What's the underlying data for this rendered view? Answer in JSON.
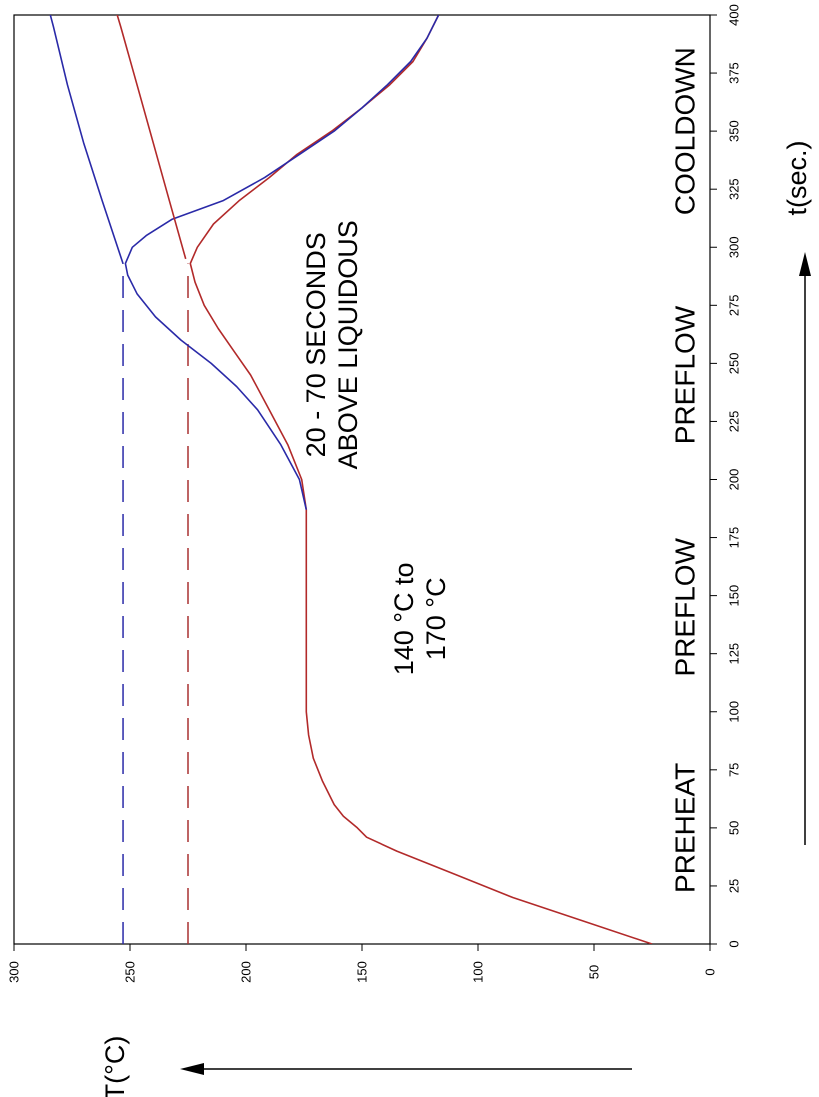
{
  "chart_data": {
    "type": "line",
    "orientation": "rotated-90-ccw",
    "xlabel": "t(sec.)",
    "ylabel": "T(°C)",
    "xlim": [
      0,
      400
    ],
    "ylim": [
      0,
      300
    ],
    "x_ticks": [
      "0",
      "25",
      "50",
      "75",
      "100",
      "125",
      "150",
      "175",
      "200",
      "225",
      "250",
      "275",
      "300",
      "325",
      "350",
      "375",
      "400"
    ],
    "y_ticks": [
      "0",
      "50",
      "100",
      "150",
      "200",
      "250",
      "300"
    ],
    "grid": false,
    "phase_labels": [
      {
        "text": "PREHEAT",
        "from": 0,
        "to": 100
      },
      {
        "text": "PREFLOW",
        "from": 100,
        "to": 190
      },
      {
        "text": "PREFLOW",
        "from": 190,
        "to": 300
      },
      {
        "text": "COOLDOWN",
        "from": 300,
        "to": 400
      }
    ],
    "annotations": [
      {
        "lines": [
          "140 °C to",
          "170 °C"
        ],
        "x": 140,
        "y": 132
      },
      {
        "lines": [
          "20 - 70 SECONDS",
          "ABOVE LIQUIDOUS"
        ],
        "x": 258,
        "y": 170
      }
    ],
    "reference_lines": [
      {
        "series_color": "#2a2aa8",
        "value": 253,
        "dashed": true
      },
      {
        "series_color": "#a83030",
        "value": 225,
        "dashed": true
      }
    ],
    "series": [
      {
        "color": "#b22a2a",
        "points": [
          [
            0,
            25
          ],
          [
            10,
            55
          ],
          [
            20,
            85
          ],
          [
            30,
            110
          ],
          [
            40,
            135
          ],
          [
            46,
            148
          ],
          [
            50,
            152
          ],
          [
            55,
            158
          ],
          [
            60,
            162
          ],
          [
            70,
            167
          ],
          [
            80,
            171
          ],
          [
            90,
            173
          ],
          [
            100,
            174
          ],
          [
            150,
            174
          ],
          [
            187,
            174
          ],
          [
            200,
            176
          ],
          [
            215,
            182
          ],
          [
            230,
            190
          ],
          [
            245,
            198
          ],
          [
            255,
            205
          ],
          [
            265,
            212
          ],
          [
            275,
            218
          ],
          [
            285,
            222
          ],
          [
            293,
            224
          ],
          [
            300,
            221
          ],
          [
            310,
            214
          ],
          [
            320,
            203
          ],
          [
            330,
            190
          ],
          [
            340,
            178
          ],
          [
            350,
            163
          ],
          [
            360,
            150
          ],
          [
            370,
            138
          ],
          [
            380,
            128
          ],
          [
            390,
            122
          ],
          [
            400,
            117
          ]
        ]
      },
      {
        "color": "#2a2aa8",
        "points": [
          [
            187,
            174
          ],
          [
            200,
            177
          ],
          [
            215,
            185
          ],
          [
            230,
            195
          ],
          [
            240,
            204
          ],
          [
            250,
            215
          ],
          [
            260,
            228
          ],
          [
            270,
            239
          ],
          [
            280,
            247
          ],
          [
            288,
            251
          ],
          [
            293,
            252
          ],
          [
            300,
            249
          ],
          [
            305,
            243
          ],
          [
            312,
            232
          ],
          [
            320,
            210
          ],
          [
            330,
            192
          ],
          [
            340,
            177
          ],
          [
            350,
            162
          ],
          [
            360,
            150
          ],
          [
            370,
            139
          ],
          [
            380,
            129
          ],
          [
            390,
            122
          ],
          [
            400,
            117
          ]
        ]
      },
      {
        "color": "#b22a2a",
        "points": [
          [
            295,
            226
          ],
          [
            320,
            233
          ],
          [
            345,
            240
          ],
          [
            370,
            247
          ],
          [
            395,
            254
          ],
          [
            415,
            260
          ]
        ]
      },
      {
        "color": "#2a2aa8",
        "points": [
          [
            293,
            253
          ],
          [
            320,
            262
          ],
          [
            345,
            270
          ],
          [
            370,
            277
          ],
          [
            395,
            283
          ],
          [
            410,
            287
          ]
        ]
      }
    ]
  }
}
